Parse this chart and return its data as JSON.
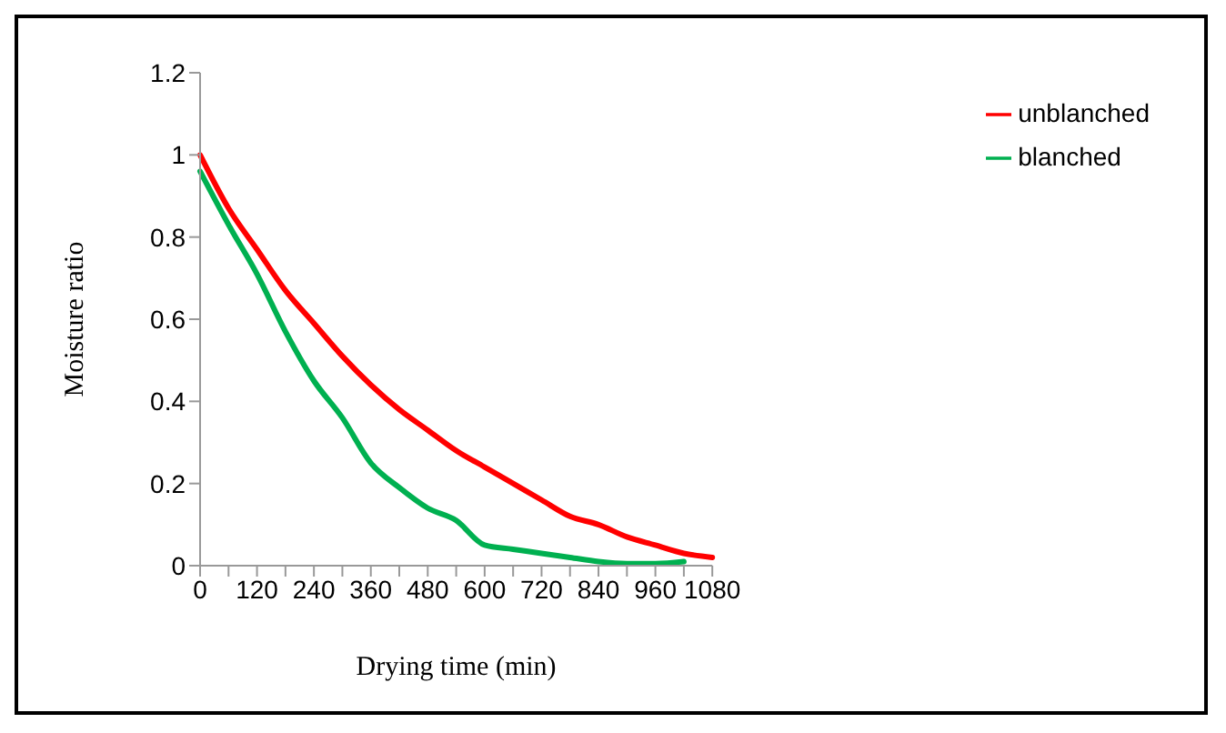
{
  "chart_data": {
    "type": "line",
    "xlabel": "Drying time (min)",
    "ylabel": "Moisture ratio",
    "categories": [
      "0",
      null,
      "120",
      null,
      "240",
      null,
      "360",
      null,
      "480",
      null,
      "600",
      null,
      "720",
      null,
      "840",
      null,
      "960",
      null,
      "1080"
    ],
    "series": [
      {
        "name": "unblanched",
        "color": "#ff0000",
        "values": [
          1.0,
          0.87,
          0.77,
          0.67,
          0.59,
          0.51,
          0.44,
          0.38,
          0.33,
          0.28,
          0.24,
          0.2,
          0.16,
          0.12,
          0.1,
          0.07,
          0.05,
          0.03,
          0.02
        ]
      },
      {
        "name": "blanched",
        "color": "#00b050",
        "values": [
          0.96,
          0.83,
          0.71,
          0.57,
          0.45,
          0.36,
          0.25,
          0.19,
          0.14,
          0.11,
          0.05,
          0.04,
          0.03,
          0.02,
          0.01,
          0.005,
          0.005,
          0.01,
          null
        ]
      }
    ],
    "ylim": [
      0,
      1.2
    ],
    "yticks": [
      0,
      0.2,
      0.4,
      0.6,
      0.8,
      1,
      1.2
    ],
    "grid": false,
    "legend": "top right",
    "marker": "none",
    "line_style": "solid"
  }
}
